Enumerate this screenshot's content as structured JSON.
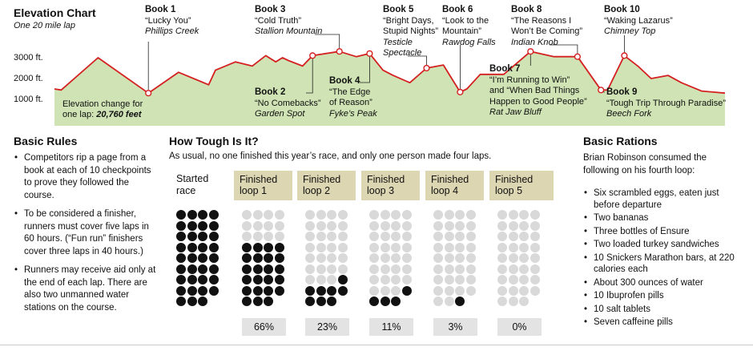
{
  "header": {
    "title": "Elevation Chart",
    "subtitle": "One 20 mile lap"
  },
  "chart_data": [
    {
      "type": "area",
      "title": "Elevation Chart",
      "subtitle": "One 20 mile lap",
      "xlabel": "",
      "ylabel": "",
      "x_unit": "miles into lap (approx.)",
      "xlim": [
        0,
        20
      ],
      "ylim": [
        0,
        3600
      ],
      "yticks": [
        {
          "value": 1000,
          "label": "1000 ft."
        },
        {
          "value": 2000,
          "label": "2000 ft."
        },
        {
          "value": 3000,
          "label": "3000 ft."
        }
      ],
      "profile": {
        "x": [
          0,
          0.2,
          1.3,
          2.8,
          3.7,
          4.6,
          4.8,
          5.4,
          5.9,
          6.3,
          6.6,
          6.8,
          7.0,
          7.4,
          7.7,
          8.5,
          9.0,
          9.4,
          9.8,
          10.1,
          10.6,
          11.1,
          11.6,
          12.1,
          12.3,
          12.7,
          13.4,
          14.2,
          14.9,
          15.6,
          16.3,
          16.5,
          17.0,
          17.4,
          17.8,
          18.3,
          18.7,
          19.3,
          20.0
        ],
        "elevation": [
          1500,
          1450,
          3000,
          1300,
          2300,
          1700,
          2400,
          2800,
          2600,
          3100,
          2800,
          3000,
          2850,
          2600,
          3100,
          3300,
          3050,
          3200,
          2400,
          2150,
          1800,
          2500,
          2650,
          1350,
          1500,
          2200,
          2200,
          3300,
          3050,
          3050,
          1450,
          1450,
          3100,
          2600,
          2000,
          2150,
          1800,
          1400,
          1300
        ]
      },
      "books": [
        {
          "label": "Book 1",
          "title": "“Lucky You”",
          "place": "Phillips Creek",
          "x": 2.8,
          "elevation": 1300
        },
        {
          "label": "Book 2",
          "title": "“No Comebacks”",
          "place": "Garden Spot",
          "x": 7.7,
          "elevation": 3100
        },
        {
          "label": "Book 3",
          "title": "“Cold Truth”",
          "place": "Stallion Mountain",
          "x": 8.5,
          "elevation": 3300
        },
        {
          "label": "Book 4",
          "title_lines": [
            "“The Edge",
            "of Reason”"
          ],
          "place": "Fyke’s Peak",
          "x": 9.4,
          "elevation": 3200
        },
        {
          "label": "Book 5",
          "title_lines": [
            "“Bright Days,",
            "Stupid Nights”"
          ],
          "place_lines": [
            "Testicle",
            "Spectacle"
          ],
          "x": 11.1,
          "elevation": 2500
        },
        {
          "label": "Book 6",
          "title_lines": [
            "“Look to the",
            "Mountain”"
          ],
          "place": "Rawdog Falls",
          "x": 12.1,
          "elevation": 1350
        },
        {
          "label": "Book 7",
          "title_lines": [
            "“I’m Running to Win”",
            "and “When Bad Things",
            "Happen to Good People”"
          ],
          "place": "Rat Jaw Bluff",
          "x": 14.2,
          "elevation": 3300
        },
        {
          "label": "Book 8",
          "title_lines": [
            "“The Reasons I",
            "Won’t Be Coming”"
          ],
          "place": "Indian Knob",
          "x": 15.6,
          "elevation": 3050
        },
        {
          "label": "Book 9",
          "title": "“Tough Trip Through Paradise”",
          "place": "Beech Fork",
          "x": 16.3,
          "elevation": 1450
        },
        {
          "label": "Book 10",
          "title": "“Waking Lazarus”",
          "place": "Chimney Top",
          "x": 17.0,
          "elevation": 3100
        }
      ],
      "annotation": {
        "line1": "Elevation change for",
        "line2": "one lap:",
        "value": "20,760 feet"
      }
    },
    {
      "type": "waffle",
      "title": "How Tough Is It?",
      "subtitle": "As usual, no one finished this year’s race, and only one person made four laps.",
      "dots_per_panel": 35,
      "stages": [
        {
          "label": "Started race",
          "filled": 35,
          "percent": null
        },
        {
          "label": "Finished loop 1",
          "filled": 23,
          "percent": "66%"
        },
        {
          "label": "Finished loop 2",
          "filled": 8,
          "percent": "23%"
        },
        {
          "label": "Finished loop 3",
          "filled": 4,
          "percent": "11%"
        },
        {
          "label": "Finished loop 4",
          "filled": 1,
          "percent": "3%"
        },
        {
          "label": "Finished loop 5",
          "filled": 0,
          "percent": "0%"
        }
      ]
    }
  ],
  "rules": {
    "title": "Basic Rules",
    "items": [
      "Competitors rip a page from a book at each of 10 checkpoints to prove they followed the course.",
      "To be considered a finisher, runners must cover five laps in 60 hours. (“Fun run” finishers cover three laps in 40 hours.)",
      "Runners may receive aid only at the end of each lap. There are also two unmanned water stations on the course."
    ]
  },
  "rations": {
    "title": "Basic Rations",
    "intro": "Brian Robinson consumed the following on his fourth loop:",
    "items": [
      "Six scrambled eggs, eaten just before departure",
      "Two bananas",
      "Three bottles of Ensure",
      "Two loaded turkey sandwiches",
      "10 Snickers Marathon bars, at 220 calories each",
      "About 300 ounces of water",
      "10 Ibuprofen pills",
      "10 salt tablets",
      "Seven caffeine pills"
    ]
  },
  "colors": {
    "area_fill": "#cfe3b4",
    "line": "#d42020",
    "marker_fill": "#ffffff",
    "dot_filled": "#111111",
    "dot_empty": "#d9d9d9",
    "header_bg": "#ddd6b2",
    "percent_bg": "#e3e3e3"
  }
}
